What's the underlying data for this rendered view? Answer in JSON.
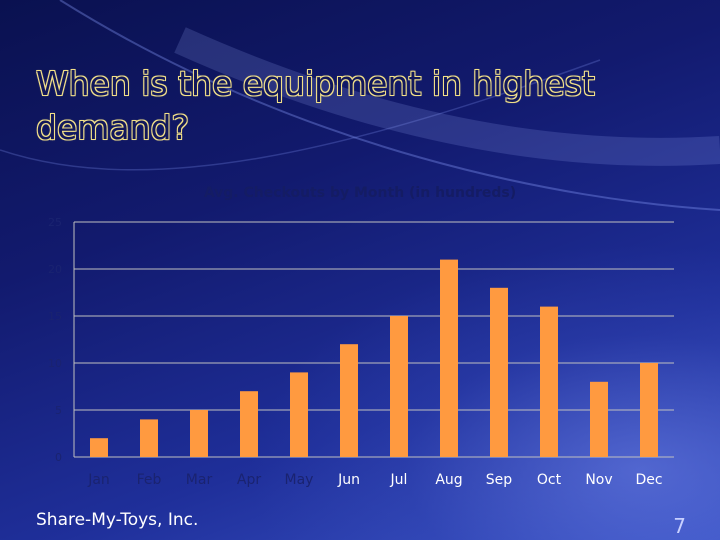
{
  "slide": {
    "title": "When is the equipment in highest demand?",
    "footer": "Share-My-Toys, Inc.",
    "page_number": "7"
  },
  "colors": {
    "bar": "#ff9a40",
    "grid": "#c0c0c0",
    "title_fill": "#11175a",
    "title_outline": "#f2e08a"
  },
  "chart_data": {
    "type": "bar",
    "title": "Avg. Checkouts by Month (in hundreds)",
    "xlabel": "",
    "ylabel": "",
    "categories": [
      "Jan",
      "Feb",
      "Mar",
      "Apr",
      "May",
      "Jun",
      "Jul",
      "Aug",
      "Sep",
      "Oct",
      "Nov",
      "Dec"
    ],
    "values": [
      2,
      4,
      5,
      7,
      9,
      12,
      15,
      21,
      18,
      16,
      8,
      10
    ],
    "ylim": [
      0,
      25
    ],
    "yticks": [
      "0",
      "5",
      "10",
      "15",
      "20",
      "25"
    ],
    "grid": true,
    "legend": "none"
  }
}
